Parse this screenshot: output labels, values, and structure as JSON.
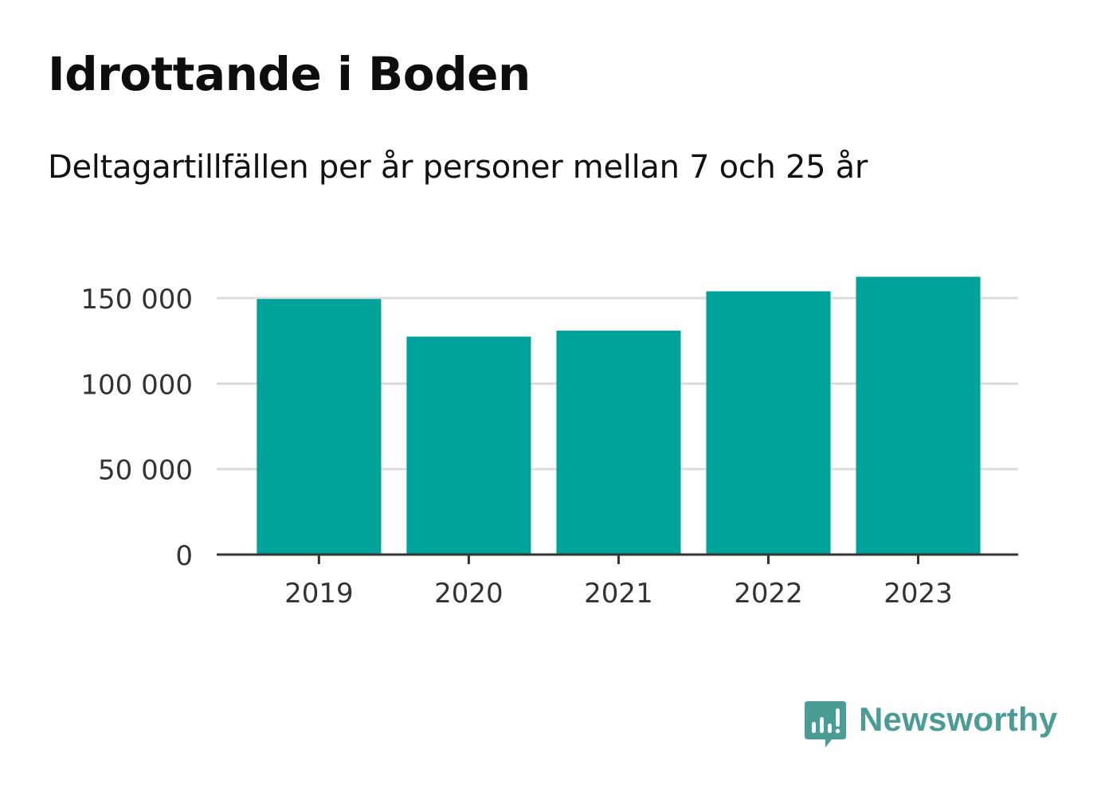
{
  "chart_data": {
    "type": "bar",
    "title": "Idrottande i Boden",
    "subtitle": "Deltagartillfällen per år personer mellan 7 och 25 år",
    "categories": [
      "2019",
      "2020",
      "2021",
      "2022",
      "2023"
    ],
    "values": [
      149500,
      127500,
      131000,
      154000,
      162500
    ],
    "ylim": [
      0,
      165000
    ],
    "yticks": [
      0,
      50000,
      100000,
      150000
    ],
    "ytick_labels": [
      "0",
      "50 000",
      "100 000",
      "150 000"
    ],
    "xlabel": "",
    "ylabel": "",
    "grid": true,
    "legend": "none",
    "bar_color": "#00a39a",
    "grid_color": "#dddddd",
    "axis_color": "#333333",
    "tick_label_color": "#333333"
  },
  "brand": {
    "name": "Newsworthy",
    "color": "#4a9c95",
    "icon": "newsworthy-logo-icon"
  }
}
